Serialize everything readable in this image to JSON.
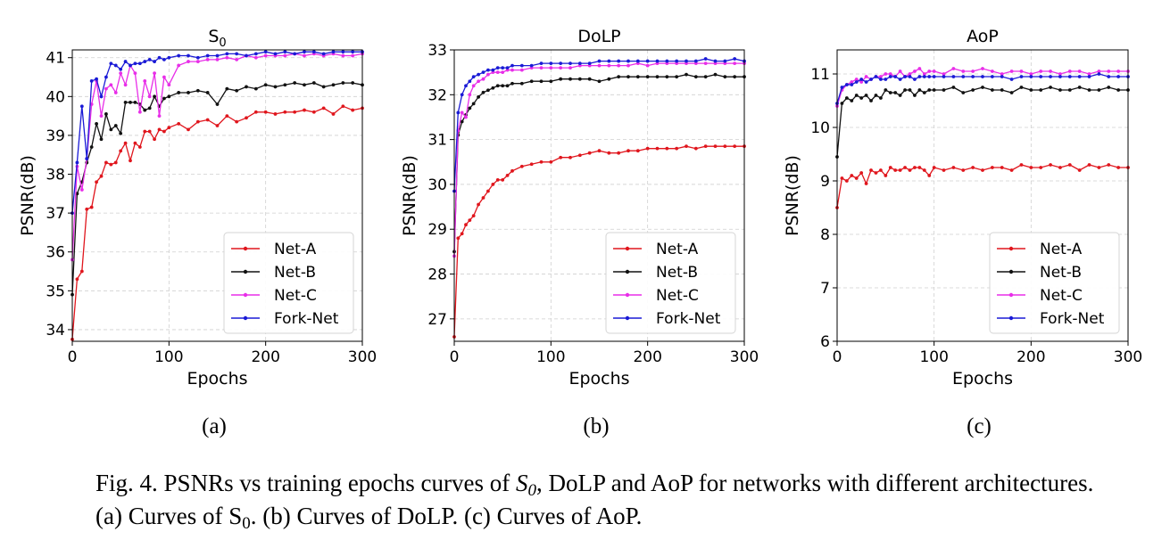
{
  "caption": {
    "fig_label": "Fig. 4.",
    "part1": "PSNRs vs training epochs curves of",
    "s_letter": "S",
    "s_sub": "0",
    "part2": ", DoLP and AoP for networks with different architectures. (a) Curves of S",
    "part3": ". (b) Curves of DoLP. (c) Curves of AoP."
  },
  "colors": {
    "Net-A": "#e0161d",
    "Net-B": "#111111",
    "Net-C": "#e82ee8",
    "Fork-Net": "#1a1ad6"
  },
  "chart_data": [
    {
      "type": "line",
      "panel_label": "(a)",
      "title": "S",
      "title_sub": "0",
      "xlabel": "Epochs",
      "ylabel": "PSNR(dB)",
      "xlim": [
        0,
        300
      ],
      "ylim": [
        33.7,
        41.2
      ],
      "xticks": [
        0,
        100,
        200,
        300
      ],
      "yticks": [
        34,
        35,
        36,
        37,
        38,
        39,
        40,
        41
      ],
      "grid": true,
      "legend_position": "lower-right",
      "x": [
        0,
        5,
        10,
        15,
        20,
        25,
        30,
        35,
        40,
        45,
        50,
        55,
        60,
        65,
        70,
        75,
        80,
        85,
        90,
        95,
        100,
        110,
        120,
        130,
        140,
        150,
        160,
        170,
        180,
        190,
        200,
        210,
        220,
        230,
        240,
        250,
        260,
        270,
        280,
        290,
        300
      ],
      "series": [
        {
          "name": "Net-A",
          "values": [
            33.75,
            35.3,
            35.5,
            37.1,
            37.15,
            37.8,
            37.95,
            38.3,
            38.25,
            38.3,
            38.6,
            38.8,
            38.35,
            38.8,
            38.7,
            39.1,
            39.1,
            38.9,
            39.15,
            39.1,
            39.2,
            39.3,
            39.15,
            39.35,
            39.4,
            39.25,
            39.5,
            39.35,
            39.45,
            39.6,
            39.6,
            39.55,
            39.6,
            39.6,
            39.65,
            39.6,
            39.7,
            39.55,
            39.75,
            39.65,
            39.7
          ]
        },
        {
          "name": "Net-B",
          "values": [
            34.9,
            37.5,
            37.8,
            38.3,
            38.7,
            39.3,
            38.9,
            39.55,
            39.15,
            39.25,
            39.05,
            39.85,
            39.85,
            39.85,
            39.8,
            39.65,
            39.7,
            40.0,
            39.75,
            39.95,
            40.0,
            40.1,
            40.1,
            40.15,
            40.1,
            39.8,
            40.2,
            40.15,
            40.25,
            40.2,
            40.3,
            40.25,
            40.3,
            40.35,
            40.3,
            40.35,
            40.25,
            40.3,
            40.35,
            40.35,
            40.3
          ]
        },
        {
          "name": "Net-C",
          "values": [
            35.8,
            38.2,
            37.6,
            38.4,
            39.8,
            40.4,
            39.5,
            40.2,
            40.3,
            40.1,
            40.6,
            40.3,
            40.8,
            40.6,
            39.6,
            40.4,
            40.0,
            40.6,
            39.5,
            40.5,
            40.3,
            40.8,
            40.9,
            40.9,
            40.95,
            40.95,
            41.0,
            40.95,
            41.05,
            41.0,
            41.05,
            41.05,
            41.05,
            41.1,
            41.05,
            41.1,
            41.05,
            41.1,
            41.05,
            41.05,
            41.1
          ]
        },
        {
          "name": "Fork-Net",
          "values": [
            37.0,
            38.3,
            39.75,
            38.4,
            40.4,
            40.45,
            40.0,
            40.5,
            40.85,
            40.8,
            40.7,
            40.9,
            40.8,
            40.85,
            40.85,
            40.9,
            40.95,
            40.9,
            41.0,
            40.95,
            41.0,
            41.05,
            41.05,
            41.0,
            41.05,
            41.05,
            41.1,
            41.1,
            41.05,
            41.1,
            41.15,
            41.1,
            41.15,
            41.1,
            41.15,
            41.15,
            41.1,
            41.15,
            41.15,
            41.15,
            41.15
          ]
        }
      ]
    },
    {
      "type": "line",
      "panel_label": "(b)",
      "title": "DoLP",
      "title_sub": "",
      "xlabel": "Epochs",
      "ylabel": "PSNR(dB)",
      "xlim": [
        0,
        300
      ],
      "ylim": [
        26.5,
        33.0
      ],
      "xticks": [
        0,
        100,
        200,
        300
      ],
      "yticks": [
        27,
        28,
        29,
        30,
        31,
        32,
        33
      ],
      "grid": true,
      "legend_position": "lower-right",
      "x": [
        0,
        4,
        8,
        12,
        16,
        20,
        25,
        30,
        35,
        40,
        45,
        50,
        55,
        60,
        70,
        80,
        90,
        100,
        110,
        120,
        130,
        140,
        150,
        160,
        170,
        180,
        190,
        200,
        210,
        220,
        230,
        240,
        250,
        260,
        270,
        280,
        290,
        300
      ],
      "series": [
        {
          "name": "Net-A",
          "values": [
            26.6,
            28.8,
            28.9,
            29.1,
            29.2,
            29.3,
            29.55,
            29.7,
            29.85,
            30.0,
            30.1,
            30.1,
            30.2,
            30.3,
            30.4,
            30.45,
            30.5,
            30.5,
            30.6,
            30.6,
            30.65,
            30.7,
            30.75,
            30.7,
            30.7,
            30.75,
            30.75,
            30.8,
            30.8,
            30.8,
            30.8,
            30.85,
            30.8,
            30.85,
            30.85,
            30.85,
            30.85,
            30.85
          ]
        },
        {
          "name": "Net-B",
          "values": [
            28.5,
            31.1,
            31.4,
            31.55,
            31.7,
            31.8,
            31.95,
            32.05,
            32.1,
            32.15,
            32.2,
            32.2,
            32.2,
            32.25,
            32.25,
            32.3,
            32.3,
            32.3,
            32.35,
            32.35,
            32.35,
            32.35,
            32.3,
            32.35,
            32.4,
            32.4,
            32.4,
            32.4,
            32.4,
            32.4,
            32.4,
            32.45,
            32.4,
            32.4,
            32.45,
            32.4,
            32.4,
            32.4
          ]
        },
        {
          "name": "Net-C",
          "values": [
            28.4,
            31.2,
            31.6,
            31.5,
            32.0,
            32.2,
            32.3,
            32.35,
            32.45,
            32.5,
            32.5,
            32.5,
            32.55,
            32.55,
            32.55,
            32.6,
            32.6,
            32.6,
            32.6,
            32.6,
            32.65,
            32.65,
            32.65,
            32.65,
            32.65,
            32.65,
            32.7,
            32.65,
            32.7,
            32.7,
            32.7,
            32.7,
            32.7,
            32.7,
            32.7,
            32.7,
            32.7,
            32.7
          ]
        },
        {
          "name": "Fork-Net",
          "values": [
            29.85,
            31.6,
            32.0,
            32.2,
            32.3,
            32.4,
            32.45,
            32.5,
            32.55,
            32.55,
            32.6,
            32.6,
            32.6,
            32.65,
            32.65,
            32.65,
            32.7,
            32.7,
            32.7,
            32.7,
            32.7,
            32.7,
            32.75,
            32.75,
            32.75,
            32.75,
            32.75,
            32.75,
            32.75,
            32.75,
            32.75,
            32.75,
            32.75,
            32.8,
            32.75,
            32.75,
            32.8,
            32.75
          ]
        }
      ]
    },
    {
      "type": "line",
      "panel_label": "(c)",
      "title": "AoP",
      "title_sub": "",
      "xlabel": "Epochs",
      "ylabel": "PSNR(dB)",
      "xlim": [
        0,
        300
      ],
      "ylim": [
        6,
        11.45
      ],
      "xticks": [
        0,
        100,
        200,
        300
      ],
      "yticks": [
        6,
        7,
        8,
        9,
        10,
        11
      ],
      "grid": true,
      "legend_position": "lower-right",
      "x": [
        0,
        5,
        10,
        15,
        20,
        25,
        30,
        35,
        40,
        45,
        50,
        55,
        60,
        65,
        70,
        75,
        80,
        85,
        90,
        95,
        100,
        110,
        120,
        130,
        140,
        150,
        160,
        170,
        180,
        190,
        200,
        210,
        220,
        230,
        240,
        250,
        260,
        270,
        280,
        290,
        300
      ],
      "series": [
        {
          "name": "Net-A",
          "values": [
            8.5,
            9.05,
            9.0,
            9.1,
            9.05,
            9.15,
            8.95,
            9.2,
            9.15,
            9.2,
            9.1,
            9.25,
            9.2,
            9.2,
            9.25,
            9.2,
            9.25,
            9.25,
            9.2,
            9.1,
            9.25,
            9.2,
            9.25,
            9.2,
            9.25,
            9.2,
            9.25,
            9.25,
            9.2,
            9.3,
            9.25,
            9.25,
            9.3,
            9.25,
            9.3,
            9.2,
            9.3,
            9.25,
            9.3,
            9.25,
            9.25
          ]
        },
        {
          "name": "Net-B",
          "values": [
            9.45,
            10.45,
            10.55,
            10.5,
            10.6,
            10.55,
            10.6,
            10.5,
            10.6,
            10.55,
            10.7,
            10.65,
            10.65,
            10.6,
            10.7,
            10.7,
            10.6,
            10.7,
            10.65,
            10.7,
            10.7,
            10.7,
            10.75,
            10.65,
            10.7,
            10.75,
            10.7,
            10.7,
            10.65,
            10.75,
            10.7,
            10.7,
            10.75,
            10.7,
            10.7,
            10.75,
            10.7,
            10.7,
            10.75,
            10.7,
            10.7
          ]
        },
        {
          "name": "Net-C",
          "values": [
            10.4,
            10.7,
            10.8,
            10.85,
            10.9,
            10.85,
            10.95,
            10.9,
            10.95,
            10.95,
            11.0,
            11.0,
            10.95,
            11.05,
            10.95,
            11.0,
            11.05,
            11.1,
            11.0,
            11.05,
            11.05,
            11.0,
            11.1,
            11.05,
            11.05,
            11.1,
            11.05,
            11.0,
            11.05,
            11.05,
            11.0,
            11.05,
            11.05,
            11.0,
            11.05,
            11.05,
            11.0,
            11.05,
            11.05,
            11.05,
            11.05
          ]
        },
        {
          "name": "Fork-Net",
          "values": [
            10.45,
            10.75,
            10.8,
            10.8,
            10.85,
            10.9,
            10.85,
            10.9,
            10.95,
            10.9,
            10.9,
            10.95,
            10.95,
            10.9,
            10.95,
            10.95,
            10.9,
            10.95,
            10.95,
            10.95,
            10.95,
            10.95,
            10.95,
            10.95,
            10.95,
            10.95,
            10.95,
            10.95,
            10.9,
            10.95,
            10.95,
            10.95,
            10.95,
            10.95,
            10.95,
            10.95,
            10.95,
            11.0,
            10.95,
            10.95,
            10.95
          ]
        }
      ]
    }
  ]
}
